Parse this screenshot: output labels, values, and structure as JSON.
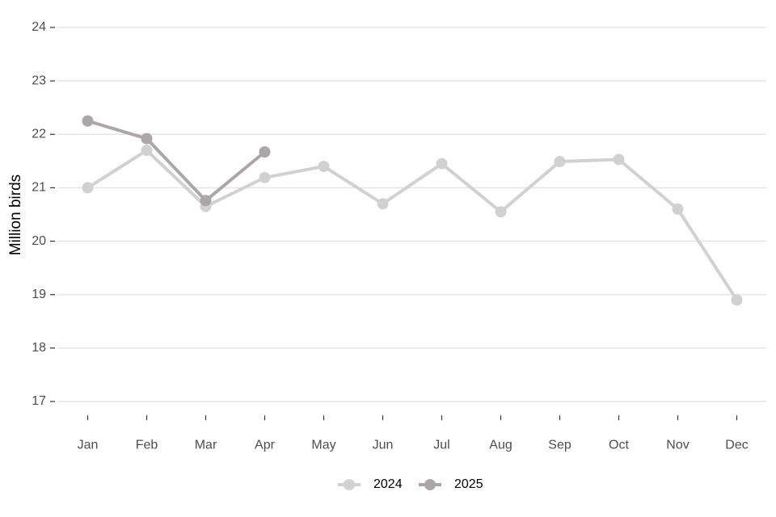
{
  "chart_data": {
    "type": "line",
    "y_label": "Million birds",
    "categories": [
      "Jan",
      "Feb",
      "Mar",
      "Apr",
      "May",
      "Jun",
      "Jul",
      "Aug",
      "Sep",
      "Oct",
      "Nov",
      "Dec"
    ],
    "series": [
      {
        "name": "2024",
        "color": "#d1d1d1",
        "values": [
          21.0,
          21.7,
          20.65,
          21.19,
          21.4,
          20.7,
          21.45,
          20.55,
          21.49,
          21.53,
          20.6,
          18.9
        ]
      },
      {
        "name": "2025",
        "color": "#aca7a7",
        "values": [
          22.25,
          21.92,
          20.76,
          21.67,
          null,
          null,
          null,
          null,
          null,
          null,
          null,
          null
        ]
      }
    ],
    "ylim": [
      16.8,
      24.2
    ],
    "yticks": [
      17,
      18,
      19,
      20,
      21,
      22,
      23,
      24
    ],
    "grid": true,
    "legend": "bottom"
  }
}
